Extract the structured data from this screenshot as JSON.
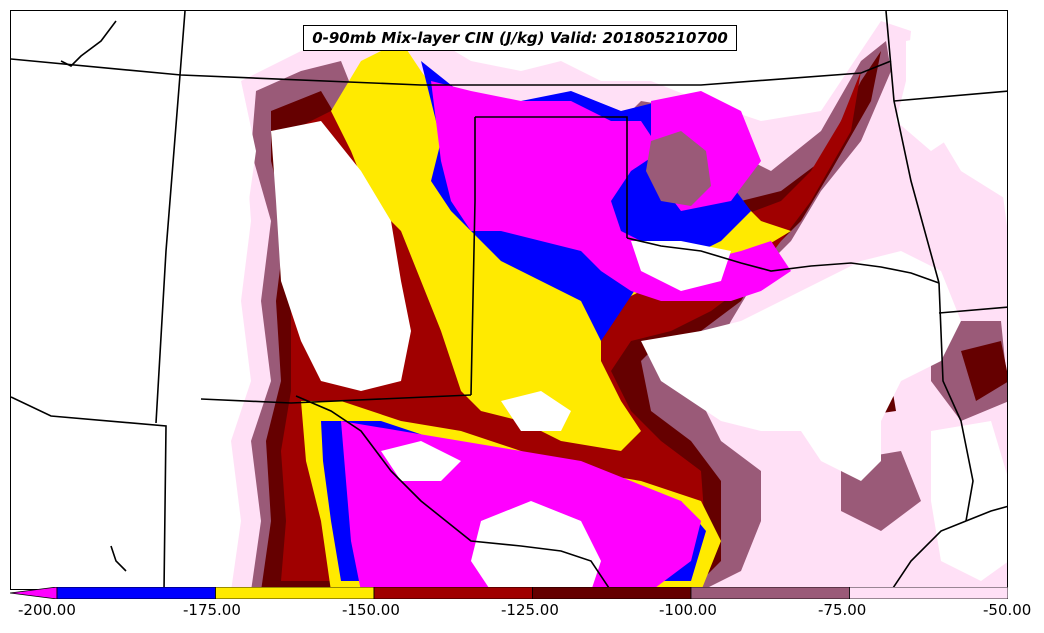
{
  "title": "0-90mb Mix-layer CIN (J/kg) Valid: 201805210700",
  "colorbar": {
    "ticks": [
      "-200.00",
      "-175.00",
      "-150.00",
      "-125.00",
      "-100.00",
      "-75.00",
      "-50.00"
    ],
    "bins": [
      {
        "from": -200,
        "to": -175,
        "color": "#0000ff"
      },
      {
        "from": -175,
        "to": -150,
        "color": "#ffea00"
      },
      {
        "from": -150,
        "to": -125,
        "color": "#a00000"
      },
      {
        "from": -125,
        "to": -100,
        "color": "#650000"
      },
      {
        "from": -100,
        "to": -75,
        "color": "#9a5a78"
      },
      {
        "from": -75,
        "to": -50,
        "color": "#ffe0f6"
      }
    ],
    "under_color": "#ff00ff"
  },
  "colors": {
    "magenta": "#ff00ff",
    "blue": "#0000ff",
    "yellow": "#ffea00",
    "red": "#a00000",
    "darkred": "#650000",
    "mauve": "#9a5a78",
    "pink": "#ffe0f6",
    "white": "#ffffff"
  }
}
